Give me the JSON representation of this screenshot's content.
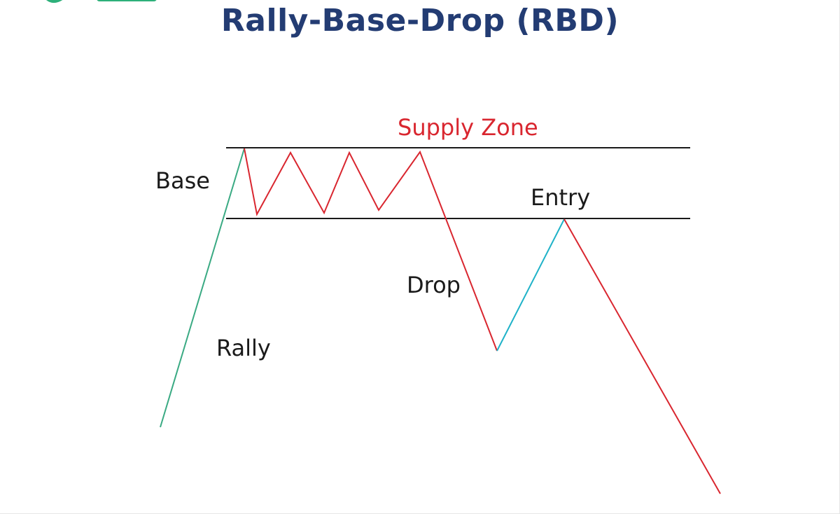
{
  "title": "Rally-Base-Drop (RBD)",
  "labels": {
    "supply_zone": "Supply Zone",
    "base": "Base",
    "entry": "Entry",
    "drop": "Drop",
    "rally": "Rally"
  },
  "colors": {
    "title": "#233c73",
    "supply_zone": "#d9262f",
    "text": "#1a1a1a",
    "rally_line": "#3aaa83",
    "drop_line": "#d9262f",
    "entry_line": "#1fb2c8",
    "zone_lines": "#1a1a1a",
    "logo_green": "#2db07a"
  }
}
